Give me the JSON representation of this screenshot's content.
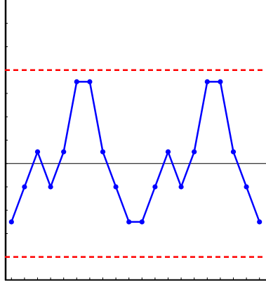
{
  "chart_data": {
    "type": "line",
    "title": "",
    "xlabel": "",
    "ylabel": "",
    "x": [
      1,
      2,
      3,
      4,
      5,
      6,
      7,
      8,
      9,
      10,
      11,
      12,
      13,
      14,
      15,
      16,
      17,
      18,
      19,
      20
    ],
    "series": [
      {
        "color": "#0000ff",
        "marker": "circle",
        "values": [
          -2.5,
          -1,
          0.5,
          -1,
          0.5,
          3.5,
          3.5,
          0.5,
          -1,
          -2.5,
          -2.5,
          -1,
          0.5,
          -1,
          0.5,
          3.5,
          3.5,
          0.5,
          -1,
          -2.5
        ]
      }
    ],
    "reference_lines": [
      {
        "value": 0,
        "style": "solid",
        "color": "#000000"
      },
      {
        "value": 4,
        "style": "dashed",
        "color": "#ff0000"
      },
      {
        "value": -4,
        "style": "dashed",
        "color": "#ff0000"
      }
    ],
    "xlim": [
      0.5,
      20.5
    ],
    "ylim": [
      -5.0,
      7.0
    ],
    "x_ticks": [
      1,
      2,
      3,
      4,
      5,
      6,
      7,
      8,
      9,
      10,
      11,
      12,
      13,
      14,
      15,
      16,
      17,
      18,
      19,
      20
    ],
    "y_ticks": [
      -5,
      -4,
      -3,
      -2,
      -1,
      0,
      1,
      2,
      3,
      4,
      5,
      6
    ],
    "grid": false,
    "legend": "none"
  }
}
